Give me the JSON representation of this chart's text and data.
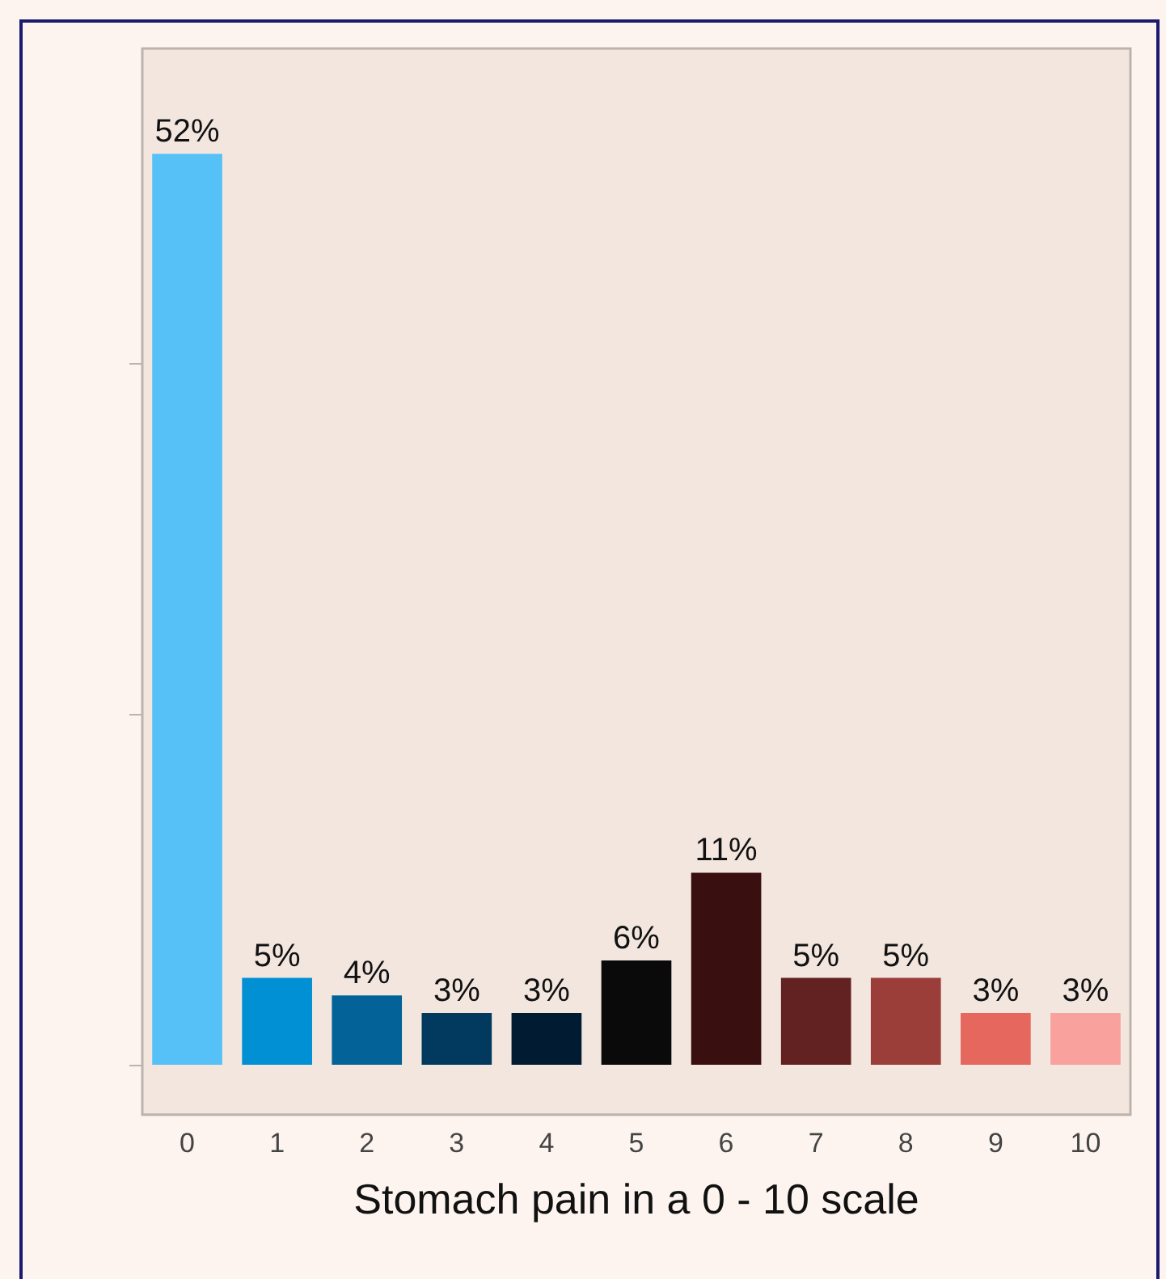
{
  "chart_data": {
    "type": "bar",
    "xlabel": "Stomach pain in a 0 - 10 scale",
    "categories": [
      "0",
      "1",
      "2",
      "3",
      "4",
      "5",
      "6",
      "7",
      "8",
      "9",
      "10"
    ],
    "values": [
      52,
      5,
      4,
      3,
      3,
      6,
      11,
      5,
      5,
      3,
      3
    ],
    "value_labels": [
      "52%",
      "5%",
      "4%",
      "3%",
      "3%",
      "6%",
      "11%",
      "5%",
      "5%",
      "3%",
      "3%"
    ],
    "colors": [
      "#56c1f7",
      "#0190d4",
      "#036398",
      "#013a5e",
      "#011b32",
      "#0a0a0a",
      "#3a0f0f",
      "#632222",
      "#9b3e3a",
      "#e5675e",
      "#f9a19c"
    ],
    "ylim": [
      -2.8,
      58
    ],
    "yticks": [
      {
        "value": 0,
        "label": null
      },
      {
        "value": 20,
        "label": null
      },
      {
        "value": 40,
        "label": null
      }
    ],
    "tick_labels": "x",
    "grid": false,
    "legend": false
  }
}
